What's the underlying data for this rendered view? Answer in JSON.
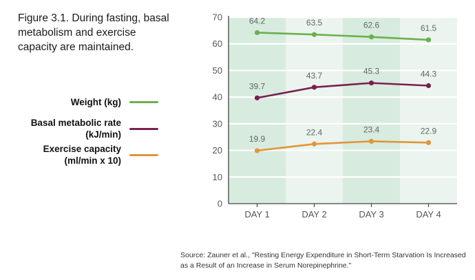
{
  "caption": "Figure 3.1. During fasting, basal metabolism and exercise capacity are maintained.",
  "source": "Source: Zauner et al., \"Resting Energy Expenditure in Short-Term Starvation Is Increased as a Result of an Increase in Serum Norepinephrine.\"",
  "legend": [
    {
      "label": "Weight (kg)",
      "color": "#6ab04c"
    },
    {
      "label": "Basal metabolic rate (kJ/min)",
      "color": "#7a1f4f"
    },
    {
      "label": "Exercise capacity (ml/min x 10)",
      "color": "#e0963a"
    }
  ],
  "chart_data": {
    "type": "line",
    "title": "",
    "xlabel": "",
    "ylabel": "",
    "categories": [
      "DAY 1",
      "DAY 2",
      "DAY 3",
      "DAY 4"
    ],
    "ylim": [
      0,
      70
    ],
    "yticks": [
      0,
      10,
      20,
      30,
      40,
      50,
      60,
      70
    ],
    "grid": true,
    "legend_position": "left",
    "series": [
      {
        "name": "Weight (kg)",
        "color": "#6ab04c",
        "values": [
          64.2,
          63.5,
          62.6,
          61.5
        ],
        "labels": [
          "64.2",
          "63.5",
          "62.6",
          "61.5"
        ]
      },
      {
        "name": "Basal metabolic rate (kJ/min)",
        "color": "#7a1f4f",
        "values": [
          39.7,
          43.7,
          45.3,
          44.3
        ],
        "labels": [
          "39.7",
          "43.7",
          "45.3",
          "44.3"
        ]
      },
      {
        "name": "Exercise capacity (ml/min x 10)",
        "color": "#e0963a",
        "values": [
          19.9,
          22.4,
          23.4,
          22.9
        ],
        "labels": [
          "19.9",
          "22.4",
          "23.4",
          "22.9"
        ]
      }
    ]
  }
}
